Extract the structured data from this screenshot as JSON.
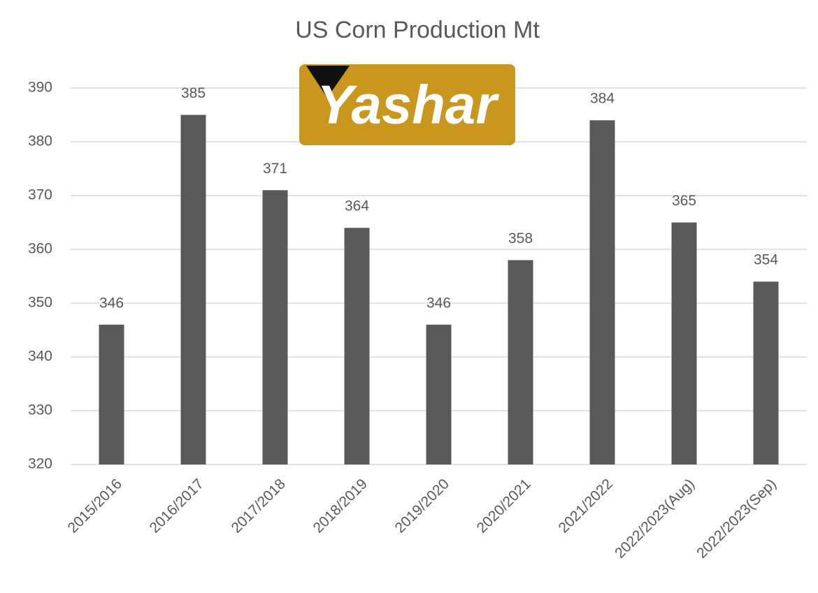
{
  "chart_data": {
    "type": "bar",
    "title": "US Corn Production Mt",
    "logo_text": "Yashar",
    "categories": [
      "2015/2016",
      "2016/2017",
      "2017/2018",
      "2018/2019",
      "2019/2020",
      "2020/2021",
      "2021/2022",
      "2022/2023(Aug)",
      "2022/2023(Sep)"
    ],
    "values": [
      346,
      385,
      371,
      364,
      346,
      358,
      384,
      365,
      354
    ],
    "color": "#595959",
    "ylim": [
      320,
      390
    ],
    "yticks": [
      320,
      330,
      340,
      350,
      360,
      370,
      380,
      390
    ],
    "grid": true
  }
}
